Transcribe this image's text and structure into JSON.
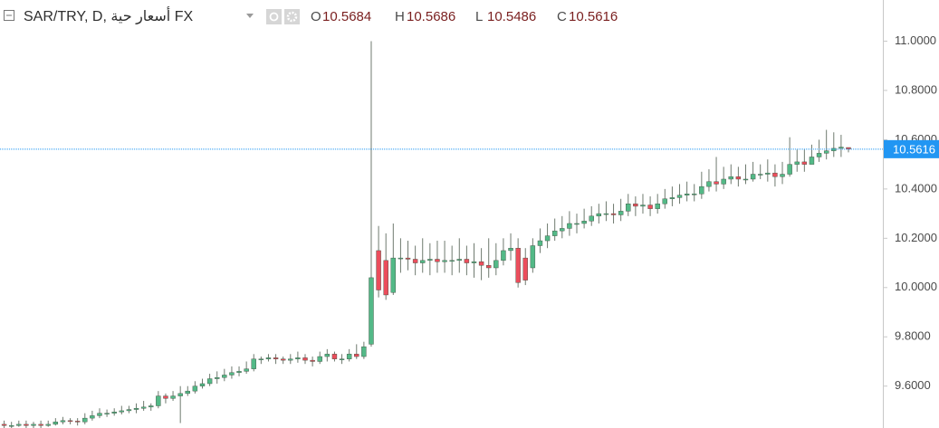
{
  "chart_data": {
    "type": "candlestick",
    "title": "SAR/TRY, D, أسعار حية FX",
    "ohlc_header": [
      {
        "label": "O",
        "value": 10.5684
      },
      {
        "label": "H",
        "value": 10.5686
      },
      {
        "label": "L",
        "value": 10.5486
      },
      {
        "label": "C",
        "value": 10.5616
      }
    ],
    "open": [
      9.445,
      9.44,
      9.44,
      9.445,
      9.44,
      9.445,
      9.44,
      9.445,
      9.455,
      9.46,
      9.458,
      9.455,
      9.47,
      9.48,
      9.49,
      9.49,
      9.495,
      9.5,
      9.505,
      9.51,
      9.515,
      9.52,
      9.56,
      9.55,
      9.56,
      9.57,
      9.58,
      9.6,
      9.61,
      9.63,
      9.635,
      9.645,
      9.655,
      9.66,
      9.67,
      9.71,
      9.71,
      9.715,
      9.71,
      9.705,
      9.71,
      9.715,
      9.705,
      9.7,
      9.72,
      9.73,
      9.71,
      9.71,
      9.73,
      9.72,
      9.77,
      10.15,
      10.11,
      9.98,
      10.12,
      10.12,
      10.115,
      10.1,
      10.11,
      10.115,
      10.105,
      10.11,
      10.11,
      10.115,
      10.1,
      10.105,
      10.09,
      10.08,
      10.11,
      10.15,
      10.16,
      10.12,
      10.08,
      10.17,
      10.19,
      10.21,
      10.23,
      10.24,
      10.26,
      10.26,
      10.27,
      10.29,
      10.3,
      10.3,
      10.295,
      10.31,
      10.34,
      10.33,
      10.335,
      10.32,
      10.34,
      10.36,
      10.365,
      10.375,
      10.38,
      10.38,
      10.41,
      10.43,
      10.42,
      10.44,
      10.45,
      10.44,
      10.44,
      10.46,
      10.46,
      10.465,
      10.45,
      10.46,
      10.5,
      10.51,
      10.5,
      10.53,
      10.545,
      10.555,
      10.565,
      10.5684
    ],
    "high": [
      9.46,
      9.455,
      9.46,
      9.46,
      9.455,
      9.46,
      9.46,
      9.47,
      9.475,
      9.47,
      9.47,
      9.49,
      9.5,
      9.51,
      9.505,
      9.51,
      9.52,
      9.52,
      9.53,
      9.54,
      9.53,
      9.58,
      9.57,
      9.58,
      9.6,
      9.6,
      9.62,
      9.63,
      9.65,
      9.66,
      9.67,
      9.68,
      9.68,
      9.7,
      9.73,
      9.72,
      9.73,
      9.73,
      9.72,
      9.73,
      9.74,
      9.73,
      9.72,
      9.74,
      9.75,
      9.74,
      9.73,
      9.75,
      9.77,
      9.78,
      11.0,
      10.25,
      10.22,
      10.26,
      10.2,
      10.19,
      10.17,
      10.2,
      10.18,
      10.19,
      10.19,
      10.17,
      10.2,
      10.17,
      10.18,
      10.16,
      10.2,
      10.18,
      10.2,
      10.22,
      10.2,
      10.16,
      10.2,
      10.24,
      10.26,
      10.28,
      10.29,
      10.31,
      10.3,
      10.32,
      10.33,
      10.34,
      10.35,
      10.34,
      10.36,
      10.38,
      10.37,
      10.38,
      10.37,
      10.38,
      10.4,
      10.41,
      10.42,
      10.43,
      10.42,
      10.47,
      10.48,
      10.53,
      10.49,
      10.5,
      10.49,
      10.5,
      10.51,
      10.5,
      10.52,
      10.5,
      10.51,
      10.61,
      10.56,
      10.56,
      10.58,
      10.6,
      10.64,
      10.63,
      10.62,
      10.5686
    ],
    "low": [
      9.43,
      9.43,
      9.435,
      9.43,
      9.43,
      9.43,
      9.435,
      9.44,
      9.445,
      9.445,
      9.44,
      9.445,
      9.46,
      9.47,
      9.475,
      9.48,
      9.485,
      9.49,
      9.49,
      9.5,
      9.5,
      9.51,
      9.53,
      9.54,
      9.45,
      9.56,
      9.57,
      9.59,
      9.6,
      9.61,
      9.62,
      9.63,
      9.64,
      9.65,
      9.66,
      9.69,
      9.7,
      9.69,
      9.69,
      9.69,
      9.695,
      9.69,
      9.68,
      9.69,
      9.7,
      9.7,
      9.69,
      9.7,
      9.71,
      9.71,
      9.76,
      9.96,
      9.95,
      9.97,
      10.06,
      10.07,
      10.05,
      10.06,
      10.05,
      10.06,
      10.06,
      10.05,
      10.06,
      10.05,
      10.04,
      10.03,
      10.04,
      10.05,
      10.09,
      10.11,
      10.0,
      10.01,
      10.06,
      10.14,
      10.16,
      10.19,
      10.2,
      10.21,
      10.22,
      10.24,
      10.25,
      10.26,
      10.27,
      10.26,
      10.27,
      10.29,
      10.29,
      10.3,
      10.29,
      10.3,
      10.32,
      10.33,
      10.34,
      10.35,
      10.35,
      10.36,
      10.39,
      10.39,
      10.4,
      10.42,
      10.41,
      10.42,
      10.43,
      10.44,
      10.43,
      10.41,
      10.42,
      10.45,
      10.47,
      10.47,
      10.5,
      10.51,
      10.52,
      10.53,
      10.53,
      10.5486
    ],
    "close": [
      9.44,
      9.44,
      9.445,
      9.44,
      9.445,
      9.44,
      9.445,
      9.455,
      9.46,
      9.458,
      9.455,
      9.47,
      9.48,
      9.49,
      9.49,
      9.495,
      9.5,
      9.505,
      9.51,
      9.515,
      9.52,
      9.56,
      9.55,
      9.56,
      9.57,
      9.58,
      9.6,
      9.61,
      9.63,
      9.635,
      9.645,
      9.655,
      9.66,
      9.67,
      9.71,
      9.71,
      9.715,
      9.71,
      9.705,
      9.71,
      9.715,
      9.705,
      9.7,
      9.72,
      9.73,
      9.71,
      9.71,
      9.73,
      9.72,
      9.76,
      10.04,
      9.99,
      9.97,
      10.12,
      10.12,
      10.115,
      10.1,
      10.11,
      10.115,
      10.105,
      10.11,
      10.11,
      10.115,
      10.1,
      10.105,
      10.09,
      10.08,
      10.11,
      10.15,
      10.16,
      10.02,
      10.03,
      10.17,
      10.19,
      10.21,
      10.23,
      10.24,
      10.26,
      10.26,
      10.27,
      10.29,
      10.3,
      10.3,
      10.295,
      10.31,
      10.34,
      10.33,
      10.335,
      10.32,
      10.34,
      10.36,
      10.365,
      10.375,
      10.38,
      10.38,
      10.41,
      10.43,
      10.42,
      10.44,
      10.45,
      10.44,
      10.44,
      10.46,
      10.46,
      10.465,
      10.45,
      10.46,
      10.5,
      10.51,
      10.5,
      10.53,
      10.545,
      10.555,
      10.565,
      10.57,
      10.5616
    ],
    "up_color": "#53b987",
    "down_color": "#eb4d5c",
    "wick_color": "#6f7a6f",
    "ylim": [
      9.43,
      11.167
    ],
    "yticks": [
      {
        "value": 9.6,
        "label": "9.6000"
      },
      {
        "value": 9.8,
        "label": "9.8000"
      },
      {
        "value": 10,
        "label": "10.0000"
      },
      {
        "value": 10.2,
        "label": "10.2000"
      },
      {
        "value": 10.4,
        "label": "10.4000"
      },
      {
        "value": 10.6,
        "label": "10.6000"
      },
      {
        "value": 10.8,
        "label": "10.8000"
      },
      {
        "value": 11,
        "label": "11.0000"
      }
    ],
    "grid": false,
    "last_price": 10.5616,
    "last_price_color": "#2196f3"
  }
}
